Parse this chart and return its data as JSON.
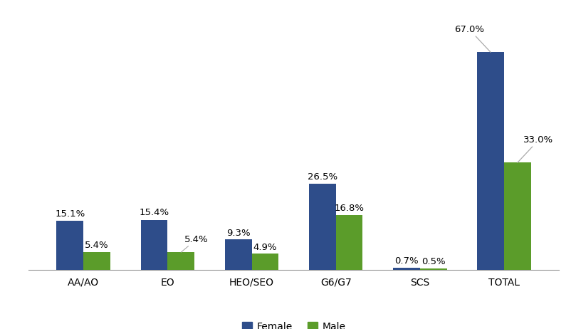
{
  "categories": [
    "AA/AO",
    "EO",
    "HEO/SEO",
    "G6/G7",
    "SCS",
    "TOTAL"
  ],
  "female_values": [
    15.1,
    15.4,
    9.3,
    26.5,
    0.7,
    67.0
  ],
  "male_values": [
    5.4,
    5.4,
    4.9,
    16.8,
    0.5,
    33.0
  ],
  "female_color": "#2E4D8A",
  "male_color": "#5B9C2A",
  "female_label": "Female",
  "male_label": "Male",
  "bar_width": 0.32,
  "ylim": [
    0,
    78
  ],
  "tick_fontsize": 10,
  "legend_fontsize": 10,
  "background_color": "#ffffff",
  "annotation_fontsize": 9.5,
  "leader_line_color": "#aaaaaa"
}
